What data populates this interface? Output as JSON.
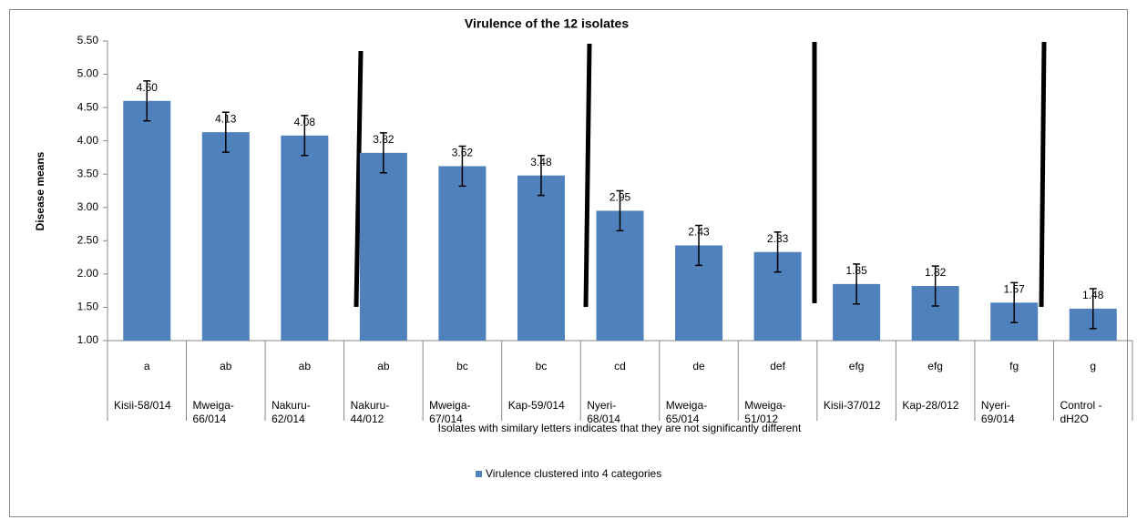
{
  "chart_data": {
    "type": "bar",
    "title": "Virulence of the 12 isolates",
    "y_label": "Disease means",
    "x_label": "Isolates with similary letters indicates that they are not significantly different",
    "group_labels": [
      "a",
      "ab",
      "ab",
      "ab",
      "bc",
      "bc",
      "cd",
      "de",
      "def",
      "efg",
      "efg",
      "fg",
      "g"
    ],
    "categories": [
      "Kisii-58/014",
      "Mweiga-66/014",
      "Nakuru-62/014",
      "Nakuru-44/012",
      "Mweiga-67/014",
      "Kap-59/014",
      "Nyeri-68/014",
      "Mweiga-65/014",
      "Mweiga-51/012",
      "Kisii-37/012",
      "Kap-28/012",
      "Nyeri-69/014",
      "Control - dH2O"
    ],
    "series": [
      {
        "name": "Virulence clustered into 4 categories",
        "color": "#4f81bd",
        "values": [
          4.6,
          4.13,
          4.08,
          3.82,
          3.62,
          3.48,
          2.95,
          2.43,
          2.33,
          1.85,
          1.82,
          1.57,
          1.48
        ],
        "value_labels": [
          "4.60",
          "4.13",
          "4.08",
          "3.82",
          "3.62",
          "3.48",
          "2.95",
          "2.43",
          "2.33",
          "1.85",
          "1.82",
          "1.57",
          "1.48"
        ],
        "errors": [
          0.3,
          0.3,
          0.3,
          0.3,
          0.3,
          0.3,
          0.3,
          0.3,
          0.3,
          0.3,
          0.3,
          0.3,
          0.3
        ]
      }
    ],
    "ylim": [
      1,
      5.5
    ],
    "yticks": [
      {
        "value": 1,
        "label": "1.00"
      },
      {
        "value": 1.5,
        "label": "1.50"
      },
      {
        "value": 2,
        "label": "2.00"
      },
      {
        "value": 2.5,
        "label": "2.50"
      },
      {
        "value": 3,
        "label": "3.00"
      },
      {
        "value": 3.5,
        "label": "3.50"
      },
      {
        "value": 4,
        "label": "4.00"
      },
      {
        "value": 4.5,
        "label": "4.50"
      },
      {
        "value": 5,
        "label": "5.00"
      },
      {
        "value": 5.5,
        "label": "5.50"
      }
    ],
    "legend": "bottom"
  }
}
